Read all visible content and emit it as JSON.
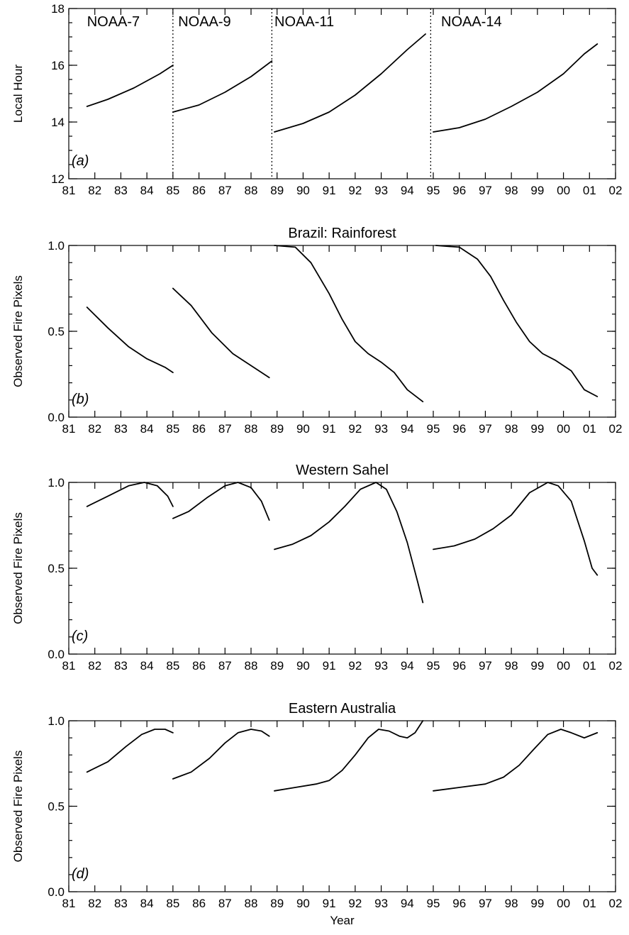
{
  "chart_data": [
    {
      "type": "line",
      "panel_label": "(a)",
      "title": "",
      "xlabel": "",
      "ylabel": "Local Hour",
      "xlim": [
        81,
        102
      ],
      "ylim": [
        12,
        18
      ],
      "x_tick_labels": [
        "81",
        "82",
        "83",
        "84",
        "85",
        "86",
        "87",
        "88",
        "89",
        "90",
        "91",
        "92",
        "93",
        "94",
        "95",
        "96",
        "97",
        "98",
        "99",
        "00",
        "01",
        "02"
      ],
      "y_ticks": [
        12,
        14,
        16,
        18
      ],
      "y_tick_labels": [
        "12",
        "14",
        "16",
        "18"
      ],
      "y_minor_step": 0.5,
      "dividers": [
        85.0,
        88.8,
        94.9
      ],
      "satellite_labels": [
        {
          "text": "NOAA-7",
          "x": 81.7
        },
        {
          "text": "NOAA-9",
          "x": 85.2
        },
        {
          "text": "NOAA-11",
          "x": 88.9
        },
        {
          "text": "NOAA-14",
          "x": 95.3
        }
      ],
      "series": [
        {
          "x": [
            81.7,
            82.5,
            83.5,
            84.5,
            85.0
          ],
          "y": [
            14.55,
            14.8,
            15.2,
            15.7,
            16.0
          ]
        },
        {
          "x": [
            85.0,
            86.0,
            87.0,
            88.0,
            88.8
          ],
          "y": [
            14.35,
            14.6,
            15.05,
            15.6,
            16.15
          ]
        },
        {
          "x": [
            88.9,
            90.0,
            91.0,
            92.0,
            93.0,
            94.0,
            94.7
          ],
          "y": [
            13.65,
            13.95,
            14.35,
            14.95,
            15.7,
            16.55,
            17.1
          ]
        },
        {
          "x": [
            95.0,
            96.0,
            97.0,
            98.0,
            99.0,
            100.0,
            100.8,
            101.3
          ],
          "y": [
            13.65,
            13.8,
            14.1,
            14.55,
            15.05,
            15.7,
            16.4,
            16.75
          ]
        }
      ]
    },
    {
      "type": "line",
      "panel_label": "(b)",
      "title": "Brazil: Rainforest",
      "xlabel": "",
      "ylabel": "Observed Fire Pixels",
      "xlim": [
        81,
        102
      ],
      "ylim": [
        0,
        1
      ],
      "x_tick_labels": [
        "81",
        "82",
        "83",
        "84",
        "85",
        "86",
        "87",
        "88",
        "89",
        "90",
        "91",
        "92",
        "93",
        "94",
        "95",
        "96",
        "97",
        "98",
        "99",
        "00",
        "01",
        "02"
      ],
      "y_ticks": [
        0,
        0.5,
        1.0
      ],
      "y_tick_labels": [
        "0.0",
        "0.5",
        "1.0"
      ],
      "y_minor_step": 0.1,
      "series": [
        {
          "x": [
            81.7,
            82.5,
            83.3,
            84.0,
            84.7,
            85.0
          ],
          "y": [
            0.64,
            0.52,
            0.41,
            0.34,
            0.29,
            0.26
          ]
        },
        {
          "x": [
            85.0,
            85.7,
            86.5,
            87.3,
            88.0,
            88.7
          ],
          "y": [
            0.75,
            0.65,
            0.49,
            0.37,
            0.3,
            0.23
          ]
        },
        {
          "x": [
            88.9,
            89.7,
            90.3,
            91.0,
            91.5,
            92.0,
            92.5,
            93.0,
            93.5,
            94.0,
            94.6
          ],
          "y": [
            1.0,
            0.99,
            0.9,
            0.72,
            0.57,
            0.44,
            0.37,
            0.32,
            0.26,
            0.16,
            0.09
          ]
        },
        {
          "x": [
            95.1,
            96.0,
            96.7,
            97.2,
            97.7,
            98.2,
            98.7,
            99.2,
            99.7,
            100.3,
            100.8,
            101.3
          ],
          "y": [
            1.0,
            0.99,
            0.92,
            0.82,
            0.68,
            0.55,
            0.44,
            0.37,
            0.33,
            0.27,
            0.16,
            0.12
          ]
        }
      ]
    },
    {
      "type": "line",
      "panel_label": "(c)",
      "title": "Western Sahel",
      "xlabel": "",
      "ylabel": "Observed Fire Pixels",
      "xlim": [
        81,
        102
      ],
      "ylim": [
        0,
        1
      ],
      "x_tick_labels": [
        "81",
        "82",
        "83",
        "84",
        "85",
        "86",
        "87",
        "88",
        "89",
        "90",
        "91",
        "92",
        "93",
        "94",
        "95",
        "96",
        "97",
        "98",
        "99",
        "00",
        "01",
        "02"
      ],
      "y_ticks": [
        0,
        0.5,
        1.0
      ],
      "y_tick_labels": [
        "0.0",
        "0.5",
        "1.0"
      ],
      "y_minor_step": 0.1,
      "series": [
        {
          "x": [
            81.7,
            82.5,
            83.3,
            83.9,
            84.4,
            84.8,
            85.0
          ],
          "y": [
            0.86,
            0.92,
            0.98,
            1.0,
            0.98,
            0.92,
            0.86
          ]
        },
        {
          "x": [
            85.0,
            85.6,
            86.3,
            87.0,
            87.5,
            88.0,
            88.4,
            88.7
          ],
          "y": [
            0.79,
            0.83,
            0.91,
            0.98,
            1.0,
            0.97,
            0.89,
            0.78
          ]
        },
        {
          "x": [
            88.9,
            89.6,
            90.3,
            91.0,
            91.6,
            92.2,
            92.8,
            93.2,
            93.6,
            94.0,
            94.4,
            94.6
          ],
          "y": [
            0.61,
            0.64,
            0.69,
            0.77,
            0.86,
            0.96,
            1.0,
            0.96,
            0.83,
            0.65,
            0.42,
            0.3
          ]
        },
        {
          "x": [
            95.0,
            95.8,
            96.6,
            97.3,
            98.0,
            98.7,
            99.4,
            99.8,
            100.3,
            100.8,
            101.1,
            101.3
          ],
          "y": [
            0.61,
            0.63,
            0.67,
            0.73,
            0.81,
            0.94,
            1.0,
            0.98,
            0.89,
            0.66,
            0.5,
            0.46
          ]
        }
      ]
    },
    {
      "type": "line",
      "panel_label": "(d)",
      "title": "Eastern Australia",
      "xlabel": "Year",
      "ylabel": "Observed Fire Pixels",
      "xlim": [
        81,
        102
      ],
      "ylim": [
        0,
        1
      ],
      "x_tick_labels": [
        "81",
        "82",
        "83",
        "84",
        "85",
        "86",
        "87",
        "88",
        "89",
        "90",
        "91",
        "92",
        "93",
        "94",
        "95",
        "96",
        "97",
        "98",
        "99",
        "00",
        "01",
        "02"
      ],
      "y_ticks": [
        0,
        0.5,
        1.0
      ],
      "y_tick_labels": [
        "0.0",
        "0.5",
        "1.0"
      ],
      "y_minor_step": 0.1,
      "series": [
        {
          "x": [
            81.7,
            82.5,
            83.2,
            83.8,
            84.3,
            84.7,
            85.0
          ],
          "y": [
            0.7,
            0.76,
            0.85,
            0.92,
            0.95,
            0.95,
            0.93
          ]
        },
        {
          "x": [
            85.0,
            85.7,
            86.4,
            87.0,
            87.5,
            88.0,
            88.4,
            88.7
          ],
          "y": [
            0.66,
            0.7,
            0.78,
            0.87,
            0.93,
            0.95,
            0.94,
            0.91
          ]
        },
        {
          "x": [
            88.9,
            89.7,
            90.5,
            91.0,
            91.5,
            92.0,
            92.5,
            92.9,
            93.3,
            93.7,
            94.0,
            94.3,
            94.6
          ],
          "y": [
            0.59,
            0.61,
            0.63,
            0.65,
            0.71,
            0.8,
            0.9,
            0.95,
            0.94,
            0.91,
            0.9,
            0.93,
            1.0
          ]
        },
        {
          "x": [
            95.0,
            96.0,
            97.0,
            97.7,
            98.3,
            98.9,
            99.4,
            99.9,
            100.3,
            100.8,
            101.3
          ],
          "y": [
            0.59,
            0.61,
            0.63,
            0.67,
            0.74,
            0.84,
            0.92,
            0.95,
            0.93,
            0.9,
            0.93
          ]
        }
      ]
    }
  ]
}
